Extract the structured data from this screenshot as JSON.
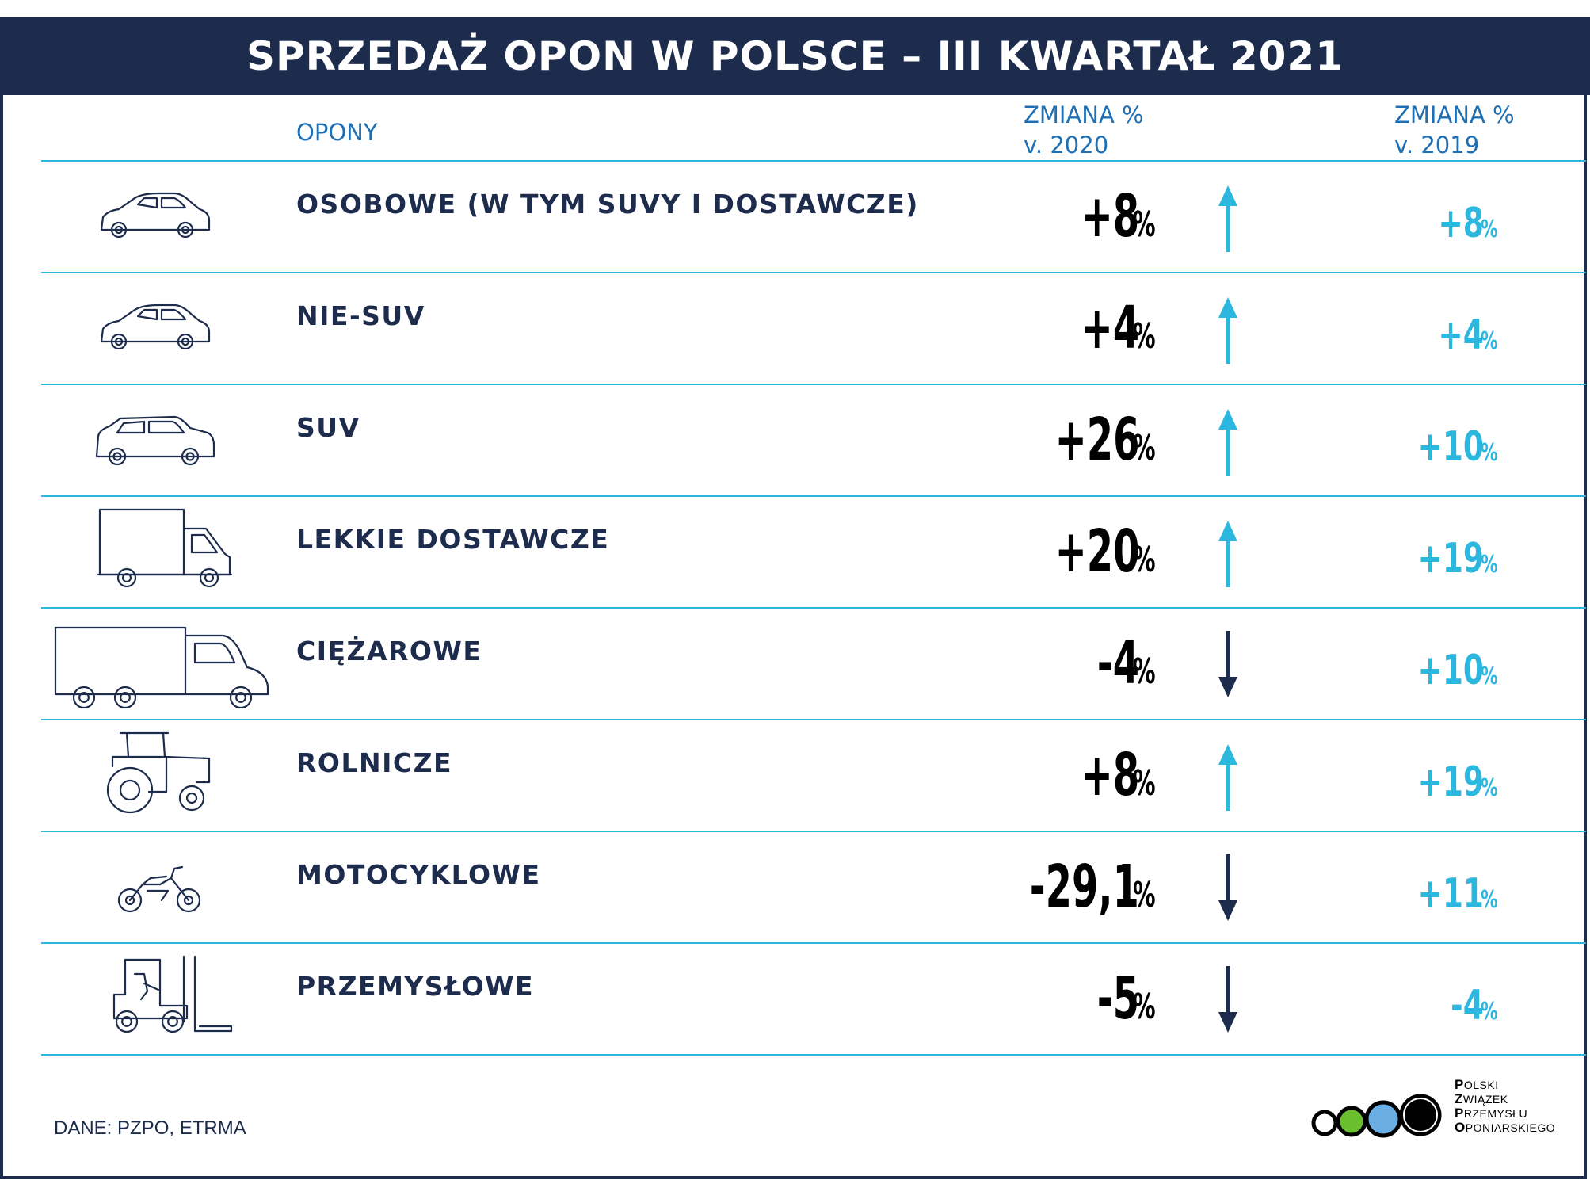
{
  "header": {
    "title": "SPRZEDAŻ OPON W POLSCE – III KWARTAŁ 2021",
    "col_label": "OPONY",
    "col_2020_line1": "ZMIANA %",
    "col_2020_line2": "v. 2020",
    "col_2019_line1": "ZMIANA %",
    "col_2019_line2": "v. 2019"
  },
  "colors": {
    "navy": "#1d2c4c",
    "cyan": "#2cb7df",
    "header_blue": "#1f6fb5"
  },
  "chart_data": {
    "type": "table",
    "columns": [
      "OPONY",
      "ZMIANA % v. 2020",
      "ZMIANA % v. 2019"
    ],
    "rows": [
      {
        "category": "OSOBOWE (W TYM SUVY I DOSTAWCZE)",
        "icon": "car-icon",
        "v2020": "+8",
        "v2020_value": 8,
        "trend": "up",
        "v2019": "+8",
        "v2019_value": 8
      },
      {
        "category": "NIE-SUV",
        "icon": "car-icon",
        "v2020": "+4",
        "v2020_value": 4,
        "trend": "up",
        "v2019": "+4",
        "v2019_value": 4
      },
      {
        "category": "SUV",
        "icon": "suv-icon",
        "v2020": "+26",
        "v2020_value": 26,
        "trend": "up",
        "v2019": "+10",
        "v2019_value": 10
      },
      {
        "category": "LEKKIE DOSTAWCZE",
        "icon": "van-icon",
        "v2020": "+20",
        "v2020_value": 20,
        "trend": "up",
        "v2019": "+19",
        "v2019_value": 19
      },
      {
        "category": "CIĘŻAROWE",
        "icon": "truck-icon",
        "v2020": "-4",
        "v2020_value": -4,
        "trend": "down",
        "v2019": "+10",
        "v2019_value": 10
      },
      {
        "category": "ROLNICZE",
        "icon": "tractor-icon",
        "v2020": "+8",
        "v2020_value": 8,
        "trend": "up",
        "v2019": "+19",
        "v2019_value": 19
      },
      {
        "category": "MOTOCYKLOWE",
        "icon": "motorcycle-icon",
        "v2020": "-29,1",
        "v2020_value": -29.1,
        "trend": "down",
        "v2019": "+11",
        "v2019_value": 11
      },
      {
        "category": "PRZEMYSŁOWE",
        "icon": "forklift-icon",
        "v2020": "-5",
        "v2020_value": -5,
        "trend": "down",
        "v2019": "-4",
        "v2019_value": -4
      }
    ],
    "unit": "%"
  },
  "footer": {
    "source": "DANE: PZPO, ETRMA",
    "logo_lines": [
      {
        "initial": "P",
        "rest": "OLSKI"
      },
      {
        "initial": "Z",
        "rest": "WIĄZEK"
      },
      {
        "initial": "P",
        "rest": "RZEMYSŁU"
      },
      {
        "initial": "O",
        "rest": "PONIARSKIEGO"
      }
    ],
    "logo_dot_colors": [
      "#ffffff",
      "#6abf2e",
      "#6aaee3",
      "#000000"
    ]
  }
}
